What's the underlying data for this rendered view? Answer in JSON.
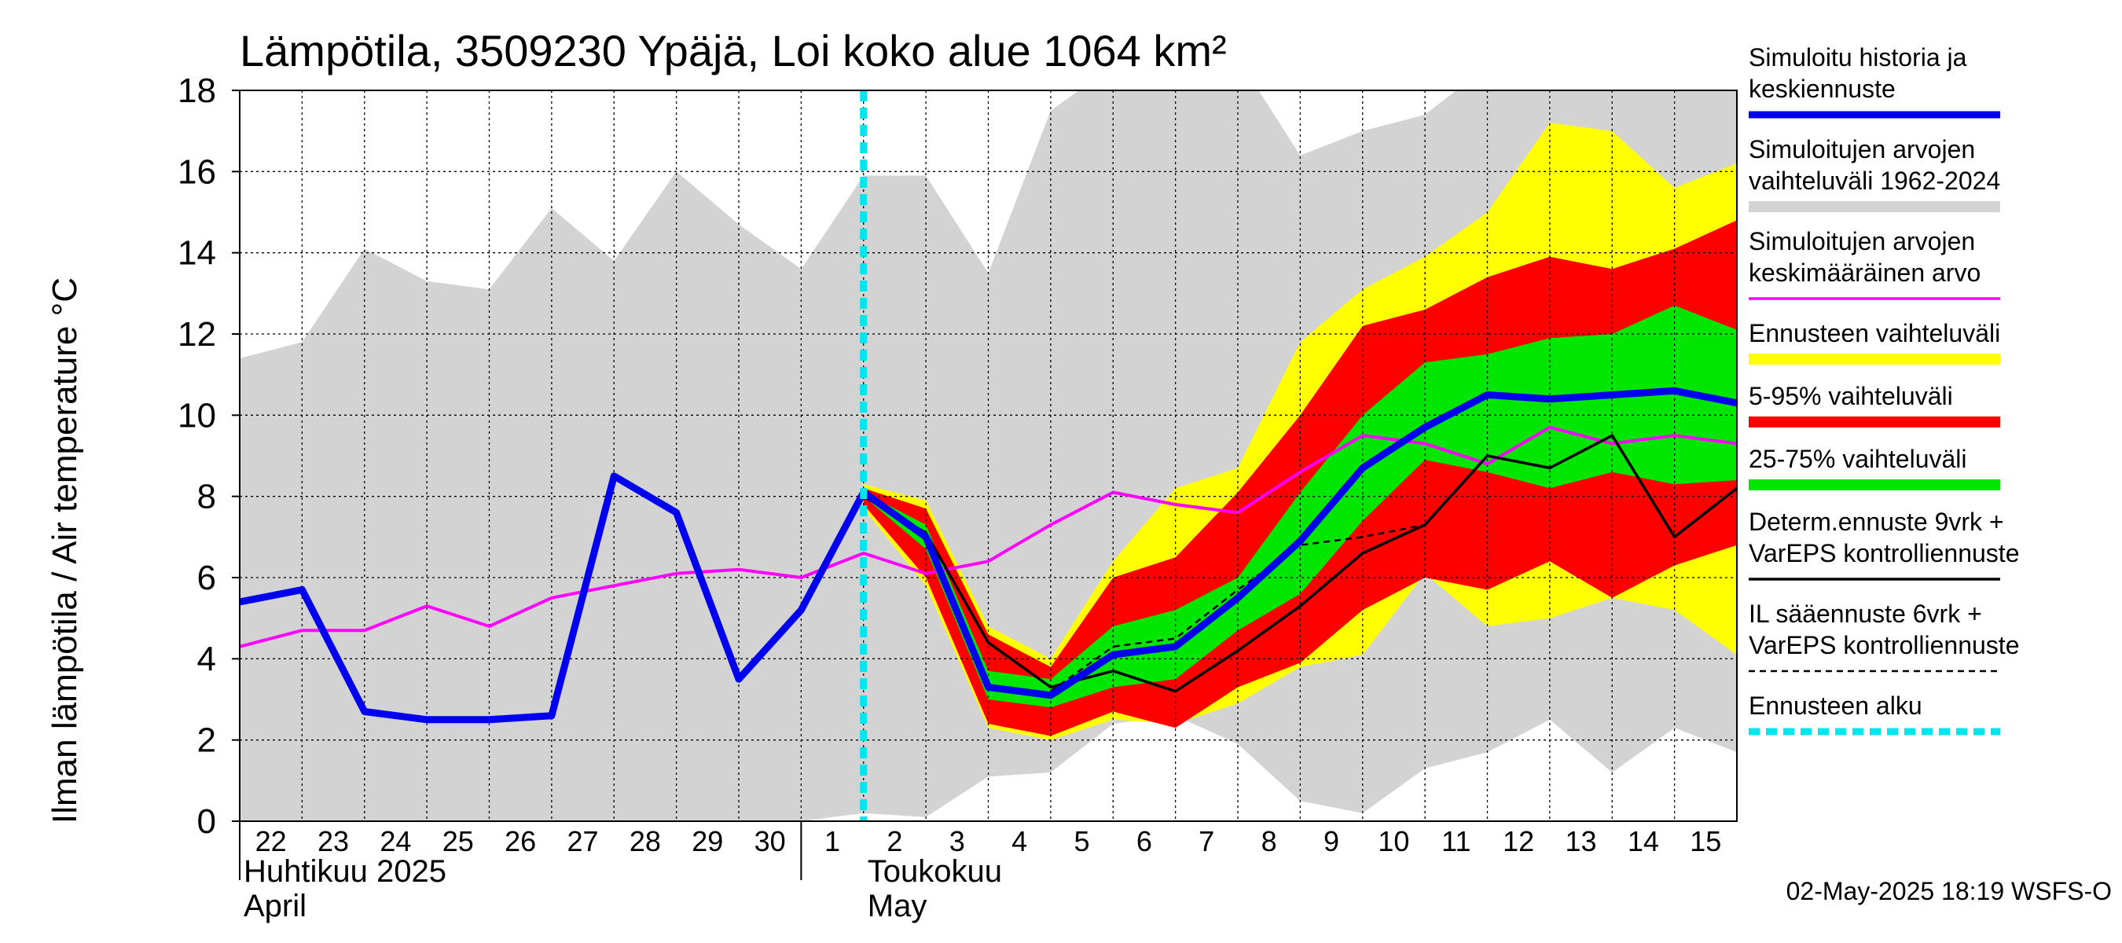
{
  "chart_data": {
    "type": "area",
    "title": "Lämpötila, 3509230 Ypäjä, Loi koko alue 1064 km²",
    "ylabel": "Ilman lämpötila / Air temperature    °C",
    "ylim": [
      0,
      18
    ],
    "yticks": [
      0,
      2,
      4,
      6,
      8,
      10,
      12,
      14,
      16,
      18
    ],
    "xlim": [
      "2025-04-22",
      "2025-05-16"
    ],
    "x_tick_labels": [
      "22",
      "23",
      "24",
      "25",
      "26",
      "27",
      "28",
      "29",
      "30",
      "1",
      "2",
      "3",
      "4",
      "5",
      "6",
      "7",
      "8",
      "9",
      "10",
      "11",
      "12",
      "13",
      "14",
      "15"
    ],
    "month_labels": [
      {
        "line1": "Huhtikuu  2025",
        "line2": "April"
      },
      {
        "line1": "Toukokuu",
        "line2": "May"
      }
    ],
    "grid": true,
    "legend_position": "right",
    "forecast_start": "2025-05-02",
    "timestamp": "02-May-2025 18:19 WSFS-O",
    "x": [
      "2025-04-22",
      "2025-04-23",
      "2025-04-24",
      "2025-04-25",
      "2025-04-26",
      "2025-04-27",
      "2025-04-28",
      "2025-04-29",
      "2025-04-30",
      "2025-05-01",
      "2025-05-02",
      "2025-05-03",
      "2025-05-04",
      "2025-05-05",
      "2025-05-06",
      "2025-05-07",
      "2025-05-08",
      "2025-05-09",
      "2025-05-10",
      "2025-05-11",
      "2025-05-12",
      "2025-05-13",
      "2025-05-14",
      "2025-05-15",
      "2025-05-16"
    ],
    "series": [
      {
        "name": "Simuloitujen arvojen vaihteluväli 1962-2024",
        "color": "#d3d3d3",
        "kind": "band",
        "x": [
          "2025-04-22",
          "2025-04-23",
          "2025-04-24",
          "2025-04-25",
          "2025-04-26",
          "2025-04-27",
          "2025-04-28",
          "2025-04-29",
          "2025-04-30",
          "2025-05-01",
          "2025-05-02",
          "2025-05-03",
          "2025-05-04",
          "2025-05-05",
          "2025-05-06",
          "2025-05-07",
          "2025-05-08",
          "2025-05-09",
          "2025-05-10",
          "2025-05-11",
          "2025-05-12",
          "2025-05-13",
          "2025-05-14",
          "2025-05-15",
          "2025-05-16"
        ],
        "lower": [
          0,
          0,
          0,
          0,
          0,
          0,
          0,
          0,
          0,
          0,
          0.2,
          0.1,
          1.1,
          1.2,
          2.4,
          2.6,
          1.9,
          0.5,
          0.2,
          1.3,
          1.7,
          2.5,
          1.2,
          2.3,
          1.7
        ],
        "upper": [
          11.4,
          11.8,
          14.1,
          13.3,
          13.1,
          15.1,
          13.8,
          16.0,
          14.7,
          13.6,
          15.9,
          15.9,
          13.5,
          17.5,
          18.6,
          18.5,
          18.8,
          16.4,
          17.0,
          17.4,
          18.6,
          18.6,
          18.8,
          18.8,
          18.8
        ]
      },
      {
        "name": "Ennusteen vaihteluväli",
        "color": "#ffff00",
        "kind": "band",
        "x": [
          "2025-05-02",
          "2025-05-03",
          "2025-05-04",
          "2025-05-05",
          "2025-05-06",
          "2025-05-07",
          "2025-05-08",
          "2025-05-09",
          "2025-05-10",
          "2025-05-11",
          "2025-05-12",
          "2025-05-13",
          "2025-05-14",
          "2025-05-15",
          "2025-05-16"
        ],
        "lower": [
          7.7,
          5.8,
          2.3,
          2.0,
          2.5,
          2.4,
          2.9,
          3.8,
          4.1,
          6.1,
          4.8,
          5.0,
          5.5,
          5.2,
          4.1
        ],
        "upper": [
          8.3,
          7.9,
          4.8,
          4.0,
          6.4,
          8.2,
          8.7,
          11.8,
          13.1,
          13.9,
          15.0,
          17.2,
          17.0,
          15.6,
          16.2
        ]
      },
      {
        "name": "5-95% vaihteluväli",
        "color": "#ff0000",
        "kind": "band",
        "x": [
          "2025-05-02",
          "2025-05-03",
          "2025-05-04",
          "2025-05-05",
          "2025-05-06",
          "2025-05-07",
          "2025-05-08",
          "2025-05-09",
          "2025-05-10",
          "2025-05-11",
          "2025-05-12",
          "2025-05-13",
          "2025-05-14",
          "2025-05-15",
          "2025-05-16"
        ],
        "lower": [
          7.8,
          6.0,
          2.4,
          2.1,
          2.7,
          2.3,
          3.3,
          3.9,
          5.2,
          6.0,
          5.7,
          6.4,
          5.5,
          6.3,
          6.8
        ],
        "upper": [
          8.2,
          7.7,
          4.6,
          3.8,
          6.0,
          6.5,
          8.1,
          10.0,
          12.2,
          12.6,
          13.4,
          13.9,
          13.6,
          14.1,
          14.8
        ]
      },
      {
        "name": "25-75% vaihteluväli",
        "color": "#00e600",
        "kind": "band",
        "x": [
          "2025-05-02",
          "2025-05-03",
          "2025-05-04",
          "2025-05-05",
          "2025-05-06",
          "2025-05-07",
          "2025-05-08",
          "2025-05-09",
          "2025-05-10",
          "2025-05-11",
          "2025-05-12",
          "2025-05-13",
          "2025-05-14",
          "2025-05-15",
          "2025-05-16"
        ],
        "lower": [
          8.0,
          6.7,
          3.0,
          2.8,
          3.3,
          3.5,
          4.7,
          5.6,
          7.4,
          8.9,
          8.6,
          8.2,
          8.6,
          8.3,
          8.4
        ],
        "upper": [
          8.1,
          7.3,
          3.7,
          3.5,
          4.8,
          5.2,
          6.0,
          8.1,
          10.0,
          11.3,
          11.5,
          11.9,
          12.0,
          12.7,
          12.1
        ]
      },
      {
        "name": "Simuloitujen arvojen keskimääräinen arvo",
        "color": "#ff00ff",
        "kind": "line",
        "x": [
          "2025-04-22",
          "2025-04-23",
          "2025-04-24",
          "2025-04-25",
          "2025-04-26",
          "2025-04-27",
          "2025-04-28",
          "2025-04-29",
          "2025-04-30",
          "2025-05-01",
          "2025-05-02",
          "2025-05-03",
          "2025-05-04",
          "2025-05-05",
          "2025-05-06",
          "2025-05-07",
          "2025-05-08",
          "2025-05-09",
          "2025-05-10",
          "2025-05-11",
          "2025-05-12",
          "2025-05-13",
          "2025-05-14",
          "2025-05-15",
          "2025-05-16"
        ],
        "values": [
          4.3,
          4.7,
          4.7,
          5.3,
          4.8,
          5.5,
          5.8,
          6.1,
          6.2,
          6.0,
          6.6,
          6.1,
          6.4,
          7.3,
          8.1,
          7.8,
          7.6,
          8.6,
          9.5,
          9.3,
          8.8,
          9.7,
          9.3,
          9.5,
          9.3
        ]
      },
      {
        "name": "Determ.ennuste 9vrk + VarEPS kontrolliennuste",
        "color": "#000000",
        "kind": "line",
        "x": [
          "2025-04-30",
          "2025-05-01",
          "2025-05-02",
          "2025-05-03",
          "2025-05-04",
          "2025-05-05",
          "2025-05-06",
          "2025-05-07",
          "2025-05-08",
          "2025-05-09",
          "2025-05-10",
          "2025-05-11",
          "2025-05-12",
          "2025-05-13",
          "2025-05-14",
          "2025-05-15",
          "2025-05-16"
        ],
        "values": [
          3.5,
          5.2,
          8.0,
          7.1,
          4.4,
          3.3,
          3.7,
          3.2,
          4.2,
          5.3,
          6.6,
          7.3,
          9.0,
          8.7,
          9.5,
          7.0,
          8.2
        ]
      },
      {
        "name": "IL sääennuste 6vrk + VarEPS kontrolliennuste",
        "color": "#000000",
        "kind": "dashed",
        "x": [
          "2025-05-05",
          "2025-05-06",
          "2025-05-07",
          "2025-05-08",
          "2025-05-09",
          "2025-05-10",
          "2025-05-11"
        ],
        "values": [
          3.2,
          4.3,
          4.5,
          5.7,
          6.8,
          7.0,
          7.3
        ]
      },
      {
        "name": "Simuloitu historia ja keskiennuste",
        "color": "#0000ee",
        "kind": "line",
        "x": [
          "2025-04-22",
          "2025-04-23",
          "2025-04-24",
          "2025-04-25",
          "2025-04-26",
          "2025-04-27",
          "2025-04-28",
          "2025-04-29",
          "2025-04-30",
          "2025-05-01",
          "2025-05-02",
          "2025-05-03",
          "2025-05-04",
          "2025-05-05",
          "2025-05-06",
          "2025-05-07",
          "2025-05-08",
          "2025-05-09",
          "2025-05-10",
          "2025-05-11",
          "2025-05-12",
          "2025-05-13",
          "2025-05-14",
          "2025-05-15",
          "2025-05-16"
        ],
        "values": [
          5.4,
          5.7,
          2.7,
          2.5,
          2.5,
          2.6,
          8.5,
          7.6,
          3.5,
          5.2,
          8.1,
          7.0,
          3.3,
          3.1,
          4.1,
          4.3,
          5.5,
          6.9,
          8.7,
          9.7,
          10.5,
          10.4,
          10.5,
          10.6,
          10.3
        ]
      }
    ],
    "legend": [
      {
        "lines": [
          "Simuloitu historia ja",
          "keskiennuste"
        ],
        "color": "#0000ee",
        "style": "thick"
      },
      {
        "lines": [
          "Simuloitujen arvojen",
          "vaihteluväli 1962-2024"
        ],
        "color": "#d3d3d3",
        "style": "band"
      },
      {
        "lines": [
          "Simuloitujen arvojen",
          "keskimääräinen arvo"
        ],
        "color": "#ff00ff",
        "style": "line"
      },
      {
        "lines": [
          "Ennusteen vaihteluväli"
        ],
        "color": "#ffff00",
        "style": "band"
      },
      {
        "lines": [
          "5-95% vaihteluväli"
        ],
        "color": "#ff0000",
        "style": "band"
      },
      {
        "lines": [
          "25-75% vaihteluväli"
        ],
        "color": "#00e600",
        "style": "band"
      },
      {
        "lines": [
          "Determ.ennuste 9vrk +",
          "VarEPS kontrolliennuste"
        ],
        "color": "#000000",
        "style": "line"
      },
      {
        "lines": [
          "IL sääennuste 6vrk  +",
          "  VarEPS kontrolliennuste"
        ],
        "color": "#000000",
        "style": "dashed"
      },
      {
        "lines": [
          "Ennusteen alku"
        ],
        "color": "#00e5ee",
        "style": "cyan-dashed"
      }
    ]
  }
}
